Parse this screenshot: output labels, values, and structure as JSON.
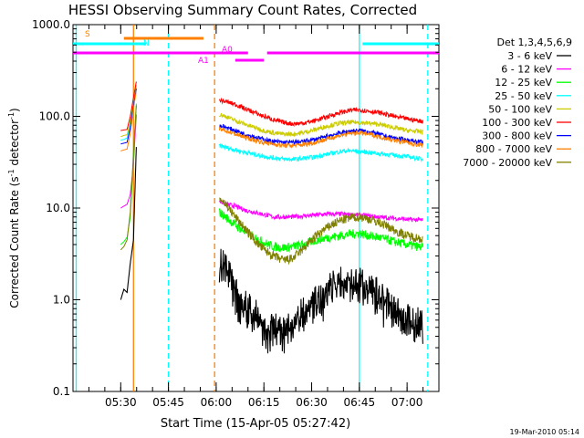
{
  "chart_data": {
    "type": "line",
    "title": "HESSI Observing Summary Count Rates, Corrected",
    "xlabel": "Start Time (15-Apr-05 05:27:42)",
    "ylabel_main": "Corrected Count Rate (s",
    "ylabel_sup1": "-1",
    "ylabel_mid": " detector",
    "ylabel_sup2": "-1",
    "ylabel_end": ")",
    "footer": "19-Mar-2010 05:14",
    "y_scale": "log",
    "ylim": [
      0.1,
      1000
    ],
    "xlim_minutes": [
      315,
      430
    ],
    "y_ticks": [
      {
        "value": 0.1,
        "label": "0.1"
      },
      {
        "value": 1,
        "label": "1.0"
      },
      {
        "value": 10,
        "label": "10.0"
      },
      {
        "value": 100,
        "label": "100.0"
      },
      {
        "value": 1000,
        "label": "1000.0"
      }
    ],
    "x_ticks": [
      {
        "value": 330,
        "label": "05:30"
      },
      {
        "value": 345,
        "label": "05:45"
      },
      {
        "value": 360,
        "label": "06:00"
      },
      {
        "value": 375,
        "label": "06:15"
      },
      {
        "value": 390,
        "label": "06:30"
      },
      {
        "value": 405,
        "label": "06:45"
      },
      {
        "value": 420,
        "label": "07:00"
      }
    ],
    "legend_title": "Det 1,3,4,5,6,9",
    "legend_placement": "right",
    "series": [
      {
        "name": "3 - 6 keV",
        "color": "#000000",
        "pre": [
          [
            330,
            1.0
          ],
          [
            331,
            1.3
          ],
          [
            332,
            1.2
          ],
          [
            333,
            2.5
          ],
          [
            334,
            4.5
          ],
          [
            335,
            60
          ]
        ],
        "post": [
          [
            361,
            3.2
          ],
          [
            363,
            2.5
          ],
          [
            365,
            1.8
          ],
          [
            367,
            1.2
          ],
          [
            369,
            1.0
          ],
          [
            372,
            0.8
          ],
          [
            375,
            0.6
          ],
          [
            378,
            0.55
          ],
          [
            381,
            0.55
          ],
          [
            384,
            0.6
          ],
          [
            387,
            0.8
          ],
          [
            390,
            1.0
          ],
          [
            393,
            1.2
          ],
          [
            396,
            1.6
          ],
          [
            399,
            1.8
          ],
          [
            402,
            1.7
          ],
          [
            405,
            1.8
          ],
          [
            408,
            1.6
          ],
          [
            411,
            1.3
          ],
          [
            414,
            1.0
          ],
          [
            417,
            0.8
          ],
          [
            420,
            0.7
          ],
          [
            425,
            0.6
          ]
        ]
      },
      {
        "name": "6 - 12 keV",
        "color": "#ff00ff",
        "pre": [
          [
            330,
            10
          ],
          [
            331,
            10.5
          ],
          [
            332,
            11
          ],
          [
            333,
            14
          ],
          [
            334,
            30
          ],
          [
            335,
            120
          ]
        ],
        "post": [
          [
            361,
            12
          ],
          [
            363,
            11
          ],
          [
            366,
            10.5
          ],
          [
            369,
            9.5
          ],
          [
            372,
            9
          ],
          [
            375,
            8.5
          ],
          [
            378,
            8
          ],
          [
            381,
            8
          ],
          [
            384,
            8
          ],
          [
            387,
            8.2
          ],
          [
            390,
            8.3
          ],
          [
            393,
            8.5
          ],
          [
            396,
            8.6
          ],
          [
            399,
            8.6
          ],
          [
            402,
            8.5
          ],
          [
            405,
            8.4
          ],
          [
            408,
            8.2
          ],
          [
            411,
            8
          ],
          [
            414,
            7.8
          ],
          [
            417,
            7.7
          ],
          [
            420,
            7.5
          ],
          [
            425,
            7.4
          ]
        ]
      },
      {
        "name": "12 - 25 keV",
        "color": "#00ff00",
        "pre": [
          [
            330,
            4.0
          ],
          [
            331,
            4.3
          ],
          [
            332,
            4.8
          ],
          [
            333,
            8
          ],
          [
            334,
            35
          ],
          [
            335,
            160
          ]
        ],
        "post": [
          [
            361,
            9
          ],
          [
            363,
            8
          ],
          [
            366,
            6.5
          ],
          [
            369,
            5.5
          ],
          [
            372,
            4.8
          ],
          [
            375,
            4.2
          ],
          [
            378,
            3.8
          ],
          [
            381,
            3.7
          ],
          [
            384,
            3.8
          ],
          [
            387,
            4.0
          ],
          [
            390,
            4.3
          ],
          [
            393,
            4.6
          ],
          [
            396,
            4.8
          ],
          [
            399,
            5.0
          ],
          [
            402,
            5.2
          ],
          [
            405,
            5.3
          ],
          [
            408,
            5.0
          ],
          [
            411,
            4.8
          ],
          [
            414,
            4.5
          ],
          [
            417,
            4.2
          ],
          [
            420,
            4.0
          ],
          [
            425,
            3.7
          ]
        ]
      },
      {
        "name": "25 - 50 keV",
        "color": "#00ffff",
        "pre": [
          [
            330,
            55
          ],
          [
            331,
            56
          ],
          [
            332,
            58
          ],
          [
            333,
            80
          ],
          [
            334,
            150
          ],
          [
            335,
            220
          ]
        ],
        "post": [
          [
            361,
            48
          ],
          [
            364,
            45
          ],
          [
            367,
            42
          ],
          [
            370,
            40
          ],
          [
            373,
            38
          ],
          [
            376,
            36
          ],
          [
            379,
            35
          ],
          [
            382,
            34
          ],
          [
            385,
            34
          ],
          [
            388,
            35
          ],
          [
            391,
            36
          ],
          [
            394,
            38
          ],
          [
            397,
            40
          ],
          [
            400,
            42
          ],
          [
            403,
            42
          ],
          [
            406,
            41
          ],
          [
            409,
            40
          ],
          [
            412,
            39
          ],
          [
            415,
            38
          ],
          [
            418,
            37
          ],
          [
            421,
            36
          ],
          [
            425,
            34
          ]
        ]
      },
      {
        "name": "50 - 100 keV",
        "color": "#cccc00",
        "pre": [
          [
            330,
            60
          ],
          [
            331,
            62
          ],
          [
            332,
            63
          ],
          [
            333,
            90
          ],
          [
            334,
            150
          ],
          [
            335,
            230
          ]
        ],
        "post": [
          [
            361,
            105
          ],
          [
            363,
            100
          ],
          [
            366,
            90
          ],
          [
            369,
            82
          ],
          [
            372,
            76
          ],
          [
            375,
            70
          ],
          [
            378,
            66
          ],
          [
            381,
            64
          ],
          [
            384,
            64
          ],
          [
            387,
            66
          ],
          [
            390,
            70
          ],
          [
            393,
            75
          ],
          [
            396,
            80
          ],
          [
            399,
            84
          ],
          [
            402,
            86
          ],
          [
            405,
            86
          ],
          [
            408,
            84
          ],
          [
            411,
            82
          ],
          [
            414,
            78
          ],
          [
            417,
            74
          ],
          [
            420,
            70
          ],
          [
            425,
            68
          ]
        ]
      },
      {
        "name": "100 - 300 keV",
        "color": "#ff0000",
        "pre": [
          [
            330,
            70
          ],
          [
            331,
            71
          ],
          [
            332,
            72
          ],
          [
            333,
            100
          ],
          [
            334,
            160
          ],
          [
            335,
            250
          ]
        ],
        "post": [
          [
            361,
            150
          ],
          [
            363,
            145
          ],
          [
            366,
            135
          ],
          [
            369,
            122
          ],
          [
            372,
            110
          ],
          [
            375,
            100
          ],
          [
            378,
            92
          ],
          [
            381,
            86
          ],
          [
            384,
            83
          ],
          [
            387,
            84
          ],
          [
            390,
            88
          ],
          [
            393,
            94
          ],
          [
            396,
            102
          ],
          [
            399,
            110
          ],
          [
            402,
            116
          ],
          [
            405,
            118
          ],
          [
            408,
            114
          ],
          [
            411,
            110
          ],
          [
            414,
            104
          ],
          [
            417,
            98
          ],
          [
            420,
            94
          ],
          [
            425,
            88
          ]
        ]
      },
      {
        "name": "300 - 800 keV",
        "color": "#0000ff",
        "pre": [
          [
            330,
            50
          ],
          [
            331,
            51
          ],
          [
            332,
            52
          ],
          [
            333,
            75
          ],
          [
            334,
            130
          ],
          [
            335,
            210
          ]
        ],
        "post": [
          [
            361,
            80
          ],
          [
            363,
            76
          ],
          [
            366,
            70
          ],
          [
            369,
            64
          ],
          [
            372,
            60
          ],
          [
            375,
            56
          ],
          [
            378,
            53
          ],
          [
            381,
            52
          ],
          [
            384,
            52
          ],
          [
            387,
            53
          ],
          [
            390,
            55
          ],
          [
            393,
            58
          ],
          [
            396,
            62
          ],
          [
            399,
            66
          ],
          [
            402,
            69
          ],
          [
            405,
            70
          ],
          [
            408,
            68
          ],
          [
            411,
            64
          ],
          [
            414,
            60
          ],
          [
            417,
            57
          ],
          [
            420,
            55
          ],
          [
            425,
            52
          ]
        ]
      },
      {
        "name": "800 - 7000 keV",
        "color": "#ff8000",
        "pre": [
          [
            330,
            42
          ],
          [
            331,
            43
          ],
          [
            332,
            44
          ],
          [
            333,
            65
          ],
          [
            334,
            120
          ],
          [
            335,
            200
          ]
        ],
        "post": [
          [
            361,
            72
          ],
          [
            363,
            70
          ],
          [
            366,
            64
          ],
          [
            369,
            59
          ],
          [
            372,
            55
          ],
          [
            375,
            52
          ],
          [
            378,
            50
          ],
          [
            381,
            48
          ],
          [
            384,
            48
          ],
          [
            387,
            49
          ],
          [
            390,
            51
          ],
          [
            393,
            54
          ],
          [
            396,
            58
          ],
          [
            399,
            62
          ],
          [
            402,
            65
          ],
          [
            405,
            66
          ],
          [
            408,
            64
          ],
          [
            411,
            60
          ],
          [
            414,
            57
          ],
          [
            417,
            54
          ],
          [
            420,
            52
          ],
          [
            425,
            48
          ]
        ]
      },
      {
        "name": "7000 - 20000 keV",
        "color": "#808000",
        "pre": [
          [
            330,
            3.5
          ],
          [
            331,
            3.8
          ],
          [
            332,
            4.5
          ],
          [
            333,
            9
          ],
          [
            334,
            40
          ],
          [
            335,
            150
          ]
        ],
        "post": [
          [
            361,
            13
          ],
          [
            363,
            11
          ],
          [
            366,
            8
          ],
          [
            369,
            6
          ],
          [
            372,
            4.5
          ],
          [
            375,
            3.5
          ],
          [
            378,
            3.0
          ],
          [
            381,
            2.7
          ],
          [
            384,
            2.8
          ],
          [
            387,
            3.5
          ],
          [
            390,
            4.5
          ],
          [
            393,
            5.5
          ],
          [
            396,
            6.5
          ],
          [
            399,
            7.3
          ],
          [
            402,
            7.8
          ],
          [
            405,
            8.0
          ],
          [
            408,
            7.6
          ],
          [
            411,
            7.0
          ],
          [
            414,
            6.3
          ],
          [
            417,
            5.5
          ],
          [
            420,
            5.0
          ],
          [
            425,
            4.6
          ]
        ]
      }
    ],
    "flag_bars": [
      {
        "label": "S",
        "color": "#ff8000",
        "x0": 331,
        "x1": 356,
        "y": 42
      },
      {
        "label": "N",
        "color": "#00ffff",
        "x0": 315,
        "x1": 338,
        "y": 48
      },
      {
        "label": "N",
        "color": "#00ffff",
        "x0": 406,
        "x1": 430,
        "y": 48
      },
      {
        "label": "A0",
        "color": "#ff00ff",
        "x0": 315,
        "x1": 430,
        "y": 58,
        "gap": [
          370,
          376
        ]
      },
      {
        "label": "A1",
        "color": "#ff00ff",
        "x0": 366,
        "x1": 375,
        "y": 66
      }
    ],
    "vlines": [
      {
        "x": 316,
        "color": "#00ffff",
        "style": "solid"
      },
      {
        "x": 334,
        "color": "#ff8000",
        "style": "solid"
      },
      {
        "x": 345,
        "color": "#00ffff",
        "style": "dashed"
      },
      {
        "x": 359.5,
        "color": "#ff8000",
        "style": "dashed"
      },
      {
        "x": 405,
        "color": "#00ffff",
        "style": "solid"
      },
      {
        "x": 426.5,
        "color": "#00ffff",
        "style": "dashed"
      }
    ]
  }
}
